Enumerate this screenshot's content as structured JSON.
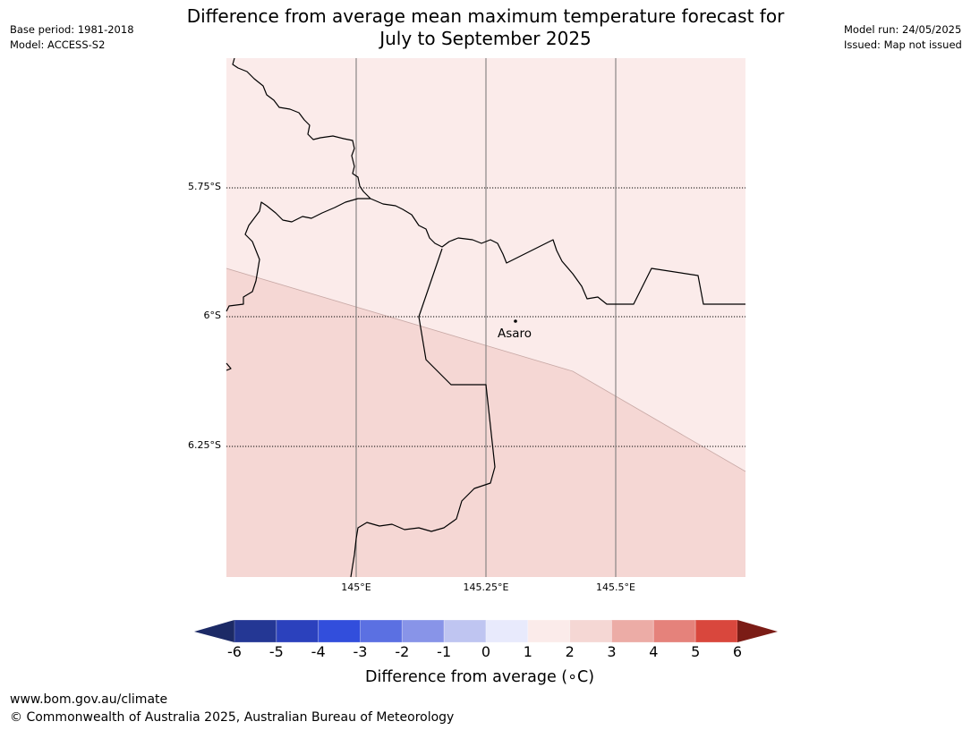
{
  "header": {
    "title_line1": "Difference from average mean maximum temperature forecast for",
    "title_line2": "July to September 2025",
    "base_period": "Base period: 1981-2018",
    "model": "Model: ACCESS-S2",
    "model_run": "Model run: 24/05/2025",
    "issued": "Issued: Map not issued"
  },
  "map": {
    "lat_labels": [
      "5.75°S",
      "6°S",
      "6.25°S"
    ],
    "lon_labels": [
      "145°E",
      "145.25°E",
      "145.5°E"
    ],
    "place": {
      "name": "Asaro",
      "lat": -6.01,
      "lon": 145.3
    },
    "region_fill": {
      "upper": "0 to 1",
      "lower": "1 to 2"
    },
    "colors": {
      "upper": "#fbebea",
      "lower": "#f5d7d4"
    }
  },
  "colorbar": {
    "label": "Difference from average (∘C)",
    "ticks": [
      "-6",
      "-5",
      "-4",
      "-3",
      "-2",
      "-1",
      "0",
      "1",
      "2",
      "3",
      "4",
      "5",
      "6"
    ],
    "colors": [
      "#243794",
      "#2b41bd",
      "#324edc",
      "#5b70e2",
      "#8894e8",
      "#bfc5f1",
      "#e8eafc",
      "#fbebea",
      "#f5d7d4",
      "#ecaca6",
      "#e5827b",
      "#d9473d",
      "#a8261d"
    ],
    "extend_low": "#1c2a66",
    "extend_high": "#7b1c16"
  },
  "footer": {
    "url": "www.bom.gov.au/climate",
    "copyright": "© Commonwealth of Australia 2025, Australian Bureau of Meteorology"
  }
}
